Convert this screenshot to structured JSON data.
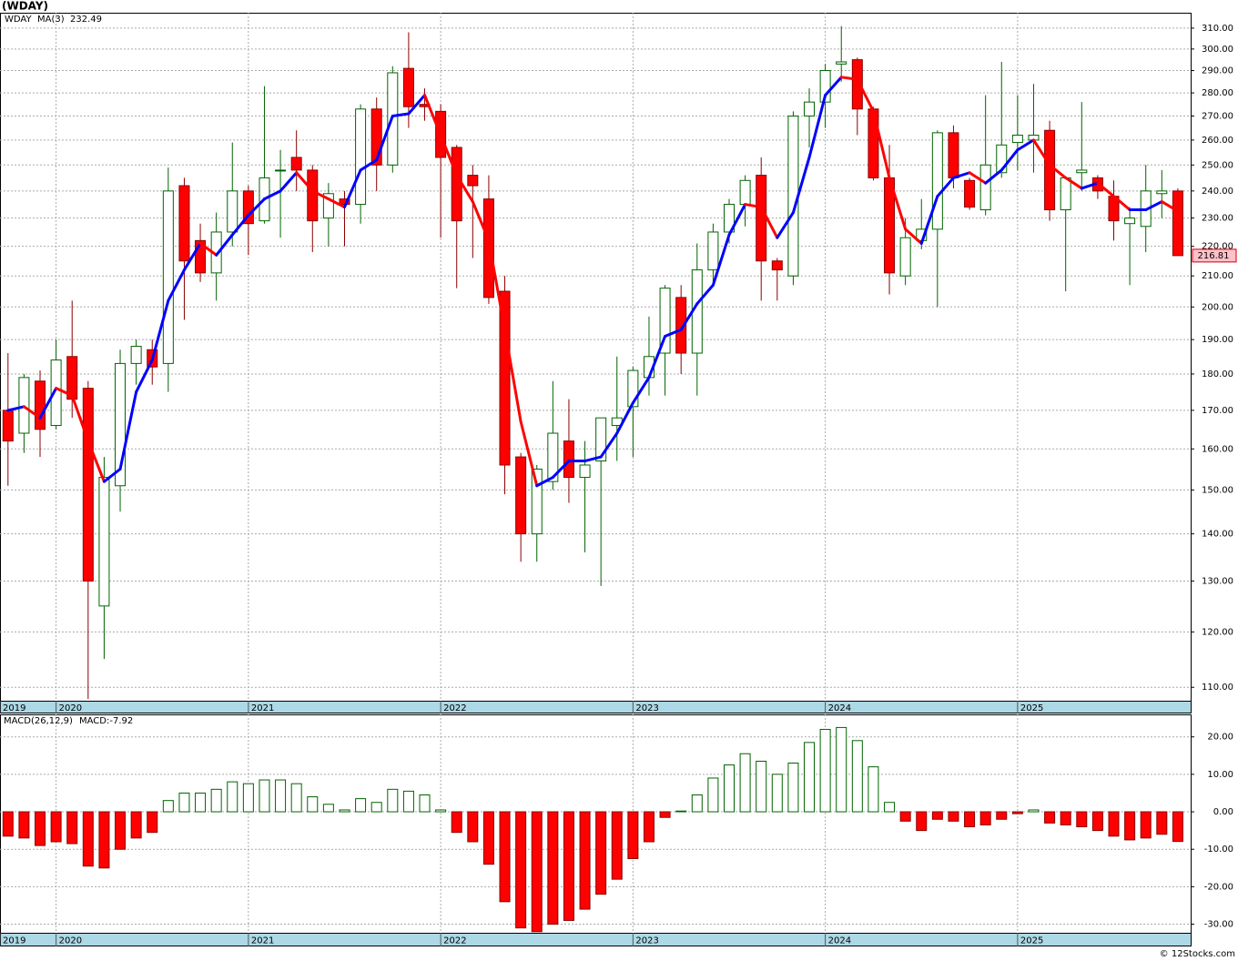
{
  "chart_data": [
    {
      "type": "candlestick",
      "title": "(WDAY)",
      "name": "WDAY",
      "log": true,
      "grid": true,
      "up_color": "#006400",
      "down_color": "#ff0000",
      "xlim": [
        -0.5,
        73.8
      ],
      "xticks": [
        {
          "value": -0.5,
          "label": "2019"
        },
        {
          "value": 3,
          "label": "2020"
        },
        {
          "value": 15,
          "label": "2021"
        },
        {
          "value": 27,
          "label": "2022"
        },
        {
          "value": 39,
          "label": "2023"
        },
        {
          "value": 51,
          "label": "2024"
        },
        {
          "value": 63,
          "label": "2025"
        }
      ],
      "ylim": [
        107.7,
        317.6
      ],
      "yticks": [
        {
          "value": 110,
          "label": "110.00"
        },
        {
          "value": 120,
          "label": "120.00"
        },
        {
          "value": 130,
          "label": "130.00"
        },
        {
          "value": 140,
          "label": "140.00"
        },
        {
          "value": 150,
          "label": "150.00"
        },
        {
          "value": 160,
          "label": "160.00"
        },
        {
          "value": 170,
          "label": "170.00"
        },
        {
          "value": 180,
          "label": "180.00"
        },
        {
          "value": 190,
          "label": "190.00"
        },
        {
          "value": 200,
          "label": "200.00"
        },
        {
          "value": 210,
          "label": "210.00"
        },
        {
          "value": 220,
          "label": "220.00"
        },
        {
          "value": 230,
          "label": "230.00"
        },
        {
          "value": 240,
          "label": "240.00"
        },
        {
          "value": 250,
          "label": "250.00"
        },
        {
          "value": 260,
          "label": "260.00"
        },
        {
          "value": 270,
          "label": "270.00"
        },
        {
          "value": 280,
          "label": "280.00"
        },
        {
          "value": 290,
          "label": "290.00"
        },
        {
          "value": 300,
          "label": "300.00"
        },
        {
          "value": 310,
          "label": "310.00"
        }
      ],
      "open": [
        170,
        164,
        178,
        166,
        185,
        176,
        125,
        151,
        183,
        187,
        183,
        242,
        222,
        211,
        225,
        240,
        229,
        248,
        253,
        248,
        230,
        237,
        235,
        273,
        250,
        291,
        275,
        272,
        257,
        246,
        237,
        205,
        158,
        140,
        152,
        162,
        153,
        157,
        166,
        171,
        179,
        186,
        203,
        186,
        212,
        225,
        235,
        246,
        215,
        210,
        270,
        276,
        293,
        295,
        273,
        245,
        210,
        222,
        226,
        263,
        244,
        233,
        247,
        259,
        260,
        264,
        233,
        247,
        245,
        238,
        228,
        227,
        239,
        240
      ],
      "high": [
        186,
        180,
        181,
        190,
        202,
        178,
        158,
        187,
        190,
        190,
        249,
        245,
        228,
        232,
        259,
        242,
        283,
        256,
        264,
        250,
        243,
        240,
        275,
        278,
        292,
        308,
        282,
        275,
        258,
        250,
        246,
        210,
        159,
        156,
        178,
        173,
        162,
        168,
        185,
        182,
        197,
        207,
        207,
        221,
        228,
        237,
        246,
        253,
        216,
        272,
        282,
        293,
        311,
        296,
        274,
        258,
        230,
        237,
        264,
        266,
        245,
        279,
        294,
        279,
        284,
        268,
        245,
        276,
        246,
        244,
        234,
        250,
        248,
        241
      ],
      "low": [
        151,
        159,
        158,
        165,
        168,
        108,
        115,
        145,
        177,
        177,
        175,
        196,
        208,
        202,
        220,
        217,
        228,
        223,
        240,
        218,
        220,
        220,
        228,
        240,
        247,
        265,
        268,
        223,
        206,
        216,
        201,
        149,
        134,
        134,
        150,
        147,
        136,
        129,
        157,
        158,
        174,
        174,
        180,
        174,
        207,
        221,
        227,
        202,
        202,
        207,
        257,
        265,
        285,
        262,
        244,
        204,
        207,
        219,
        200,
        241,
        233,
        231,
        245,
        248,
        247,
        229,
        205,
        240,
        237,
        222,
        207,
        218,
        230,
        217
      ],
      "close": [
        162,
        179,
        165,
        184,
        173,
        130,
        153,
        183,
        188,
        182,
        240,
        215,
        211,
        225,
        240,
        228,
        245,
        248,
        248,
        229,
        239,
        235,
        273,
        250,
        289,
        274,
        274,
        253,
        229,
        242,
        203,
        156,
        140,
        155,
        164,
        153,
        156,
        168,
        168,
        181,
        185,
        206,
        186,
        212,
        225,
        235,
        244,
        215,
        212,
        270,
        276,
        290,
        294,
        273,
        245,
        211,
        223,
        226,
        263,
        245,
        234,
        250,
        258,
        262,
        262,
        233,
        245,
        248,
        240,
        229,
        230,
        240,
        240,
        216.81
      ],
      "ma": {
        "name": "MA(3)",
        "color": "#0000ff",
        "up_color": "#0000ff",
        "down_color": "#ff0000",
        "values": [
          170,
          171,
          168,
          176,
          174,
          162,
          152,
          155,
          175,
          184,
          202,
          212,
          221,
          217,
          224,
          231,
          237,
          240,
          247,
          240,
          237,
          234,
          248,
          252,
          270,
          271,
          279,
          262,
          246,
          236,
          222,
          193,
          167,
          151,
          153,
          157,
          157,
          158,
          164,
          172,
          179,
          191,
          193,
          201,
          207,
          224,
          235,
          234,
          223,
          232,
          253,
          279,
          287,
          286,
          272,
          245,
          226,
          221,
          238,
          245,
          247,
          243,
          248,
          256,
          260,
          250,
          245,
          241,
          243,
          238,
          233,
          233,
          236,
          232.49
        ]
      }
    },
    {
      "type": "bar",
      "name": "MACD(26,12,9)",
      "value_label": "MACD:-7.92",
      "grid": true,
      "up_color": "#006400",
      "down_color": "#ff0000",
      "xlim": [
        -0.5,
        73.8
      ],
      "xticks": [
        {
          "value": -0.5,
          "label": "2019"
        },
        {
          "value": 3,
          "label": "2020"
        },
        {
          "value": 15,
          "label": "2021"
        },
        {
          "value": 27,
          "label": "2022"
        },
        {
          "value": 39,
          "label": "2023"
        },
        {
          "value": 51,
          "label": "2024"
        },
        {
          "value": 63,
          "label": "2025"
        }
      ],
      "ylim": [
        -32.3,
        26
      ],
      "yticks": [
        {
          "value": 20,
          "label": "20.00"
        },
        {
          "value": 10,
          "label": "10.00"
        },
        {
          "value": 0,
          "label": "0.00"
        },
        {
          "value": -10,
          "label": "-10.00"
        },
        {
          "value": -20,
          "label": "-20.00"
        },
        {
          "value": -30,
          "label": "-30.00"
        }
      ],
      "values": [
        -6.5,
        -7,
        -9,
        -8,
        -8.5,
        -14.5,
        -15,
        -10,
        -7,
        -5.5,
        3,
        5,
        5,
        6,
        8,
        7.5,
        8.5,
        8.5,
        7.5,
        4,
        2,
        0.5,
        3.5,
        2.5,
        6,
        5.5,
        4.5,
        0.5,
        -5.5,
        -8,
        -14,
        -24,
        -31,
        -32,
        -30,
        -29,
        -26,
        -22,
        -18,
        -12.5,
        -8,
        -1.5,
        0.2,
        4.5,
        9,
        12.5,
        15.5,
        13.5,
        10,
        13,
        18.5,
        22,
        22.5,
        19,
        12,
        2.5,
        -2.5,
        -5,
        -2,
        -2.5,
        -4,
        -3.5,
        -2,
        -0.5,
        0.5,
        -3,
        -3.5,
        -4,
        -5,
        -6.5,
        -7.5,
        -7,
        -6,
        -7.92
      ]
    }
  ],
  "footer": "© 12Stocks.com"
}
